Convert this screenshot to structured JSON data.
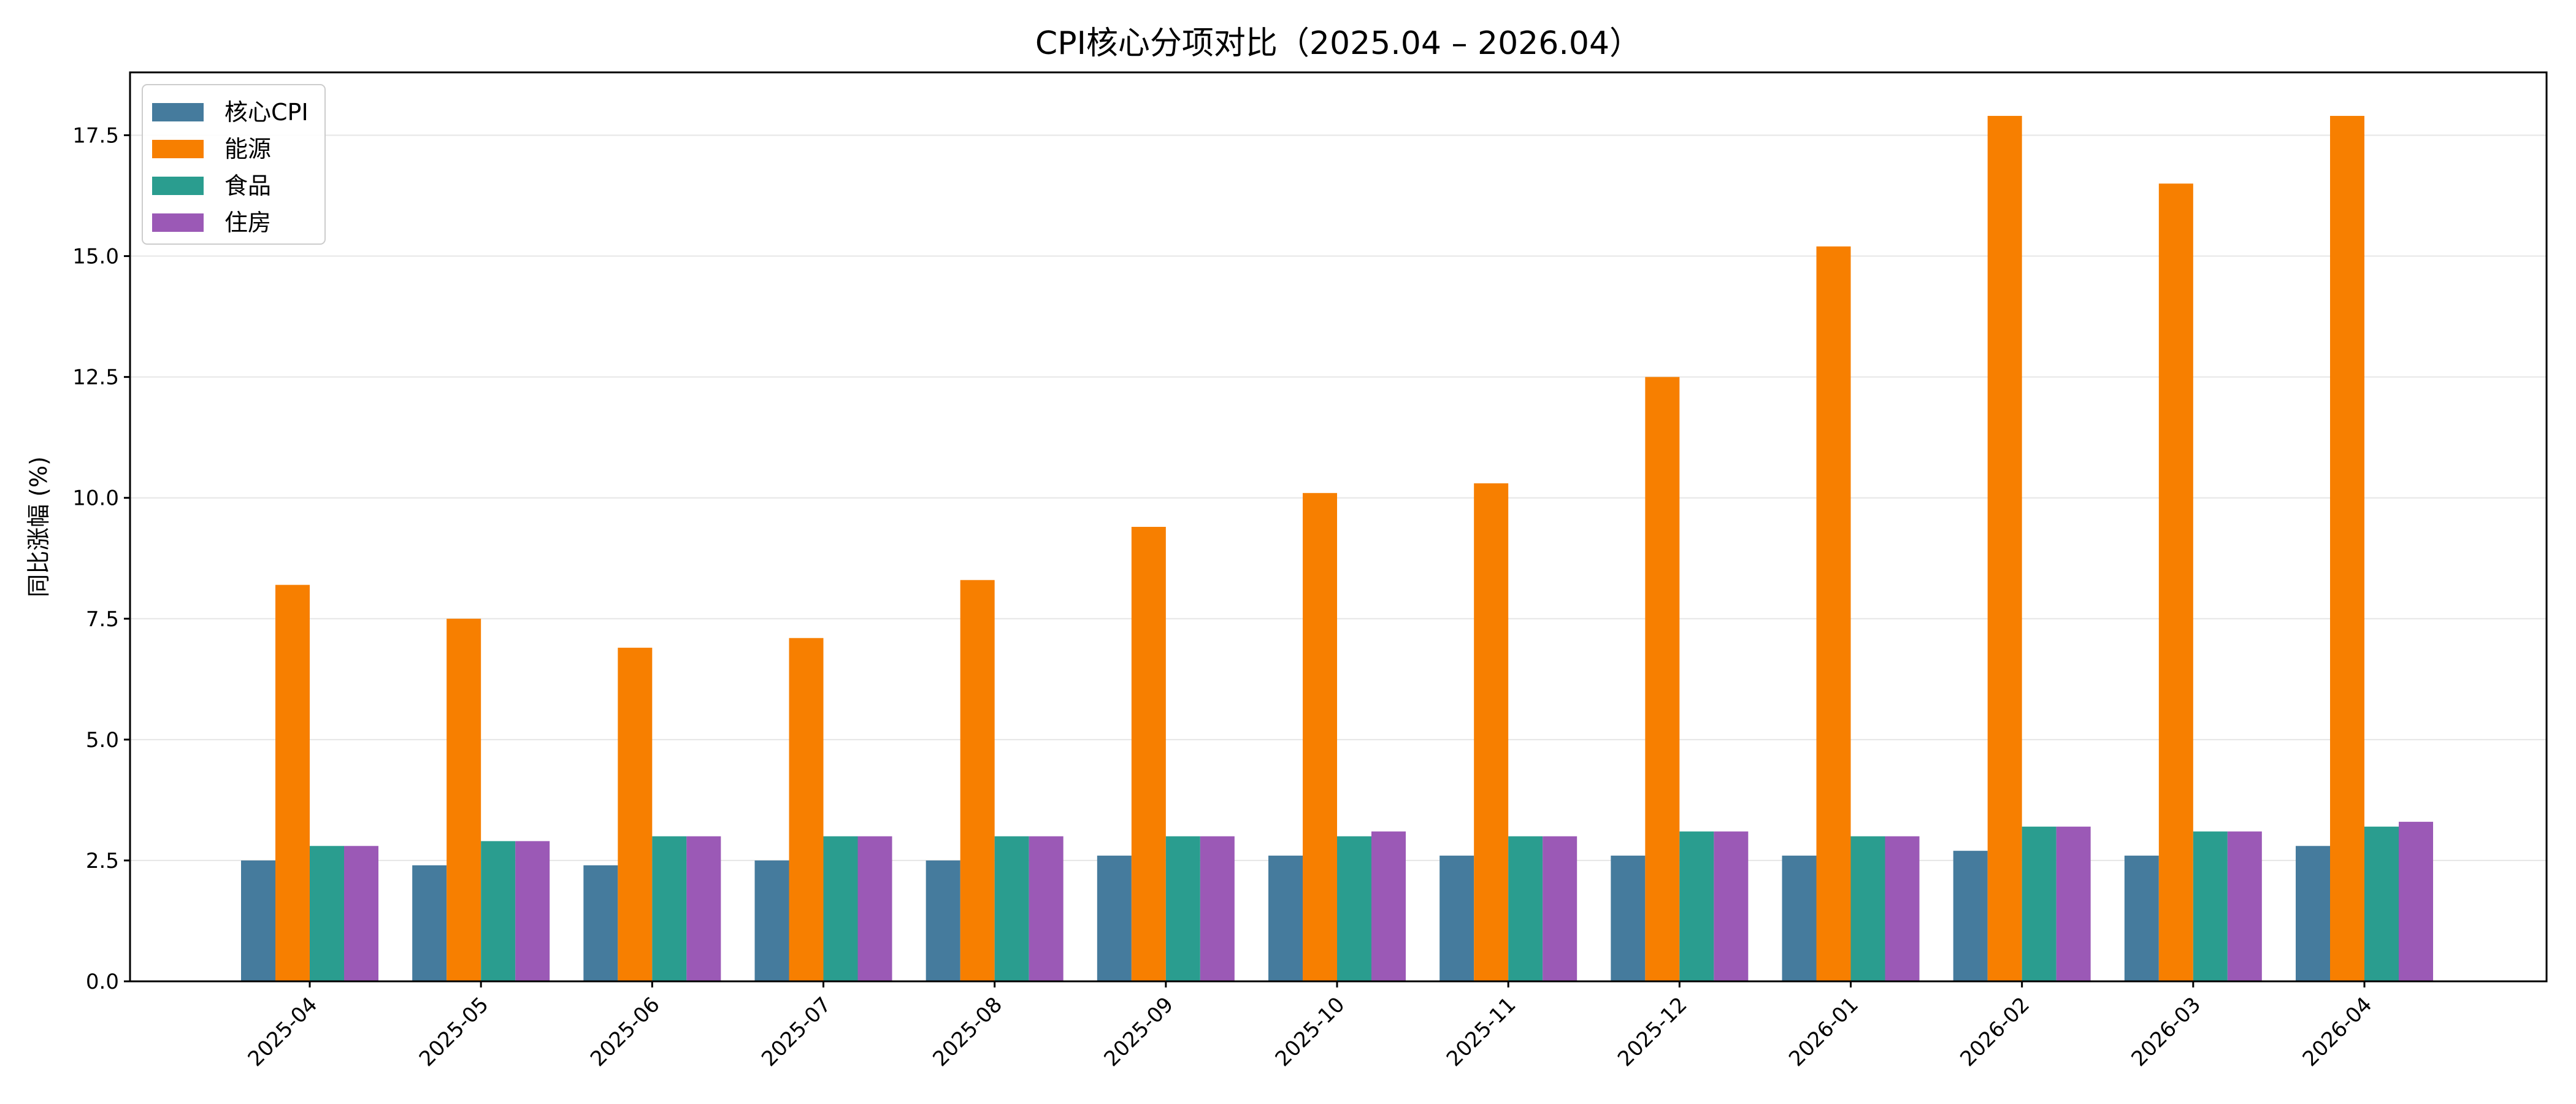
{
  "chart_data": {
    "type": "bar",
    "title": "CPI核心分项对比（2025.04 – 2026.04）",
    "xlabel": "",
    "ylabel": "同比涨幅 (%)",
    "ylim": [
      0,
      18.8
    ],
    "yticks": [
      "0.0",
      "2.5",
      "5.0",
      "7.5",
      "10.0",
      "12.5",
      "15.0",
      "17.5"
    ],
    "grid": "horizontal",
    "legend_position": "top-left",
    "categories": [
      "2025-04",
      "2025-05",
      "2025-06",
      "2025-07",
      "2025-08",
      "2025-09",
      "2025-10",
      "2025-11",
      "2025-12",
      "2026-01",
      "2026-02",
      "2026-03",
      "2026-04"
    ],
    "series": [
      {
        "name": "核心CPI",
        "color": "#457b9d",
        "values": [
          2.5,
          2.4,
          2.4,
          2.5,
          2.5,
          2.6,
          2.6,
          2.6,
          2.6,
          2.6,
          2.7,
          2.6,
          2.8
        ]
      },
      {
        "name": "能源",
        "color": "#f77f00",
        "values": [
          8.2,
          7.5,
          6.9,
          7.1,
          8.3,
          9.4,
          10.1,
          10.3,
          12.5,
          15.2,
          17.9,
          16.5,
          17.9
        ]
      },
      {
        "name": "食品",
        "color": "#2a9d8f",
        "values": [
          2.8,
          2.9,
          3.0,
          3.0,
          3.0,
          3.0,
          3.0,
          3.0,
          3.1,
          3.0,
          3.2,
          3.1,
          3.2
        ]
      },
      {
        "name": "住房",
        "color": "#9b59b6",
        "values": [
          2.8,
          2.9,
          3.0,
          3.0,
          3.0,
          3.0,
          3.1,
          3.0,
          3.1,
          3.0,
          3.2,
          3.1,
          3.3
        ]
      }
    ]
  }
}
